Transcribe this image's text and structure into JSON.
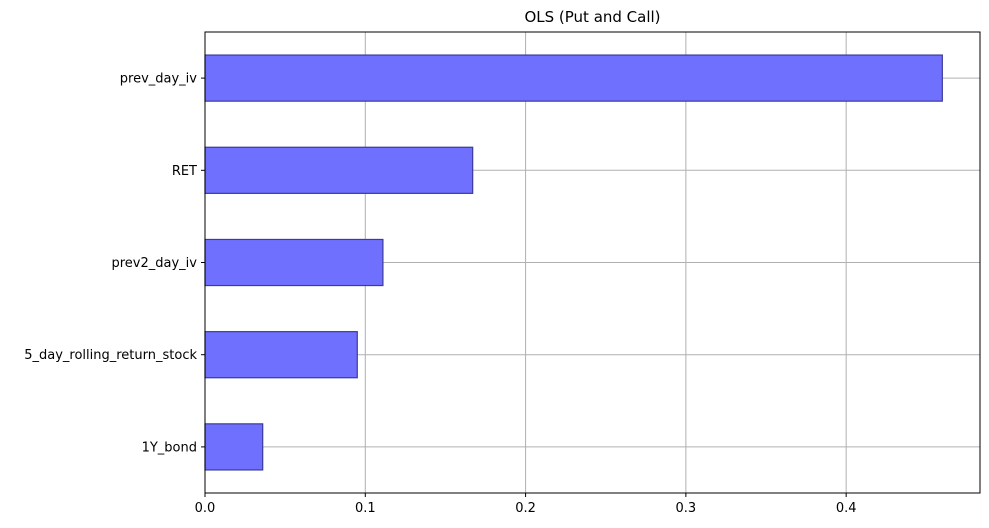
{
  "chart_data": {
    "type": "bar",
    "orientation": "horizontal",
    "title": "OLS (Put and Call)",
    "xlabel": "",
    "ylabel": "",
    "categories": [
      "prev_day_iv",
      "RET",
      "prev2_day_iv",
      "5_day_rolling_return_stock",
      "1Y_bond"
    ],
    "values": [
      0.46,
      0.167,
      0.111,
      0.095,
      0.036
    ],
    "xlim": [
      0,
      0.4835
    ],
    "xticks": [
      0.0,
      0.1,
      0.2,
      0.3,
      0.4
    ],
    "xtick_labels": [
      "0.0",
      "0.1",
      "0.2",
      "0.3",
      "0.4"
    ],
    "grid": true,
    "bar_color": "#7070ff",
    "bar_edge_color": "#3b3b9a"
  }
}
